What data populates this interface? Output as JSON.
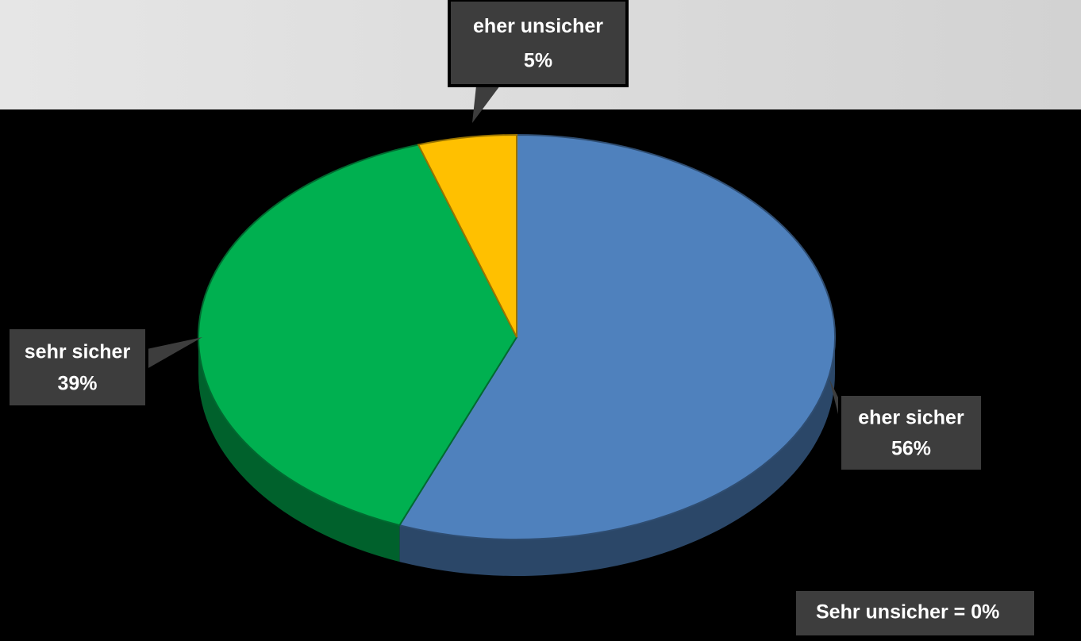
{
  "chart_data": {
    "type": "pie",
    "categories": [
      "eher sicher",
      "sehr sicher",
      "eher unsicher"
    ],
    "values": [
      56,
      39,
      5
    ],
    "value_labels": [
      "56%",
      "39%",
      "5%"
    ],
    "colors": [
      "#4f81bd",
      "#00b050",
      "#ffc000"
    ],
    "annotation": "Sehr unsicher = 0%"
  }
}
